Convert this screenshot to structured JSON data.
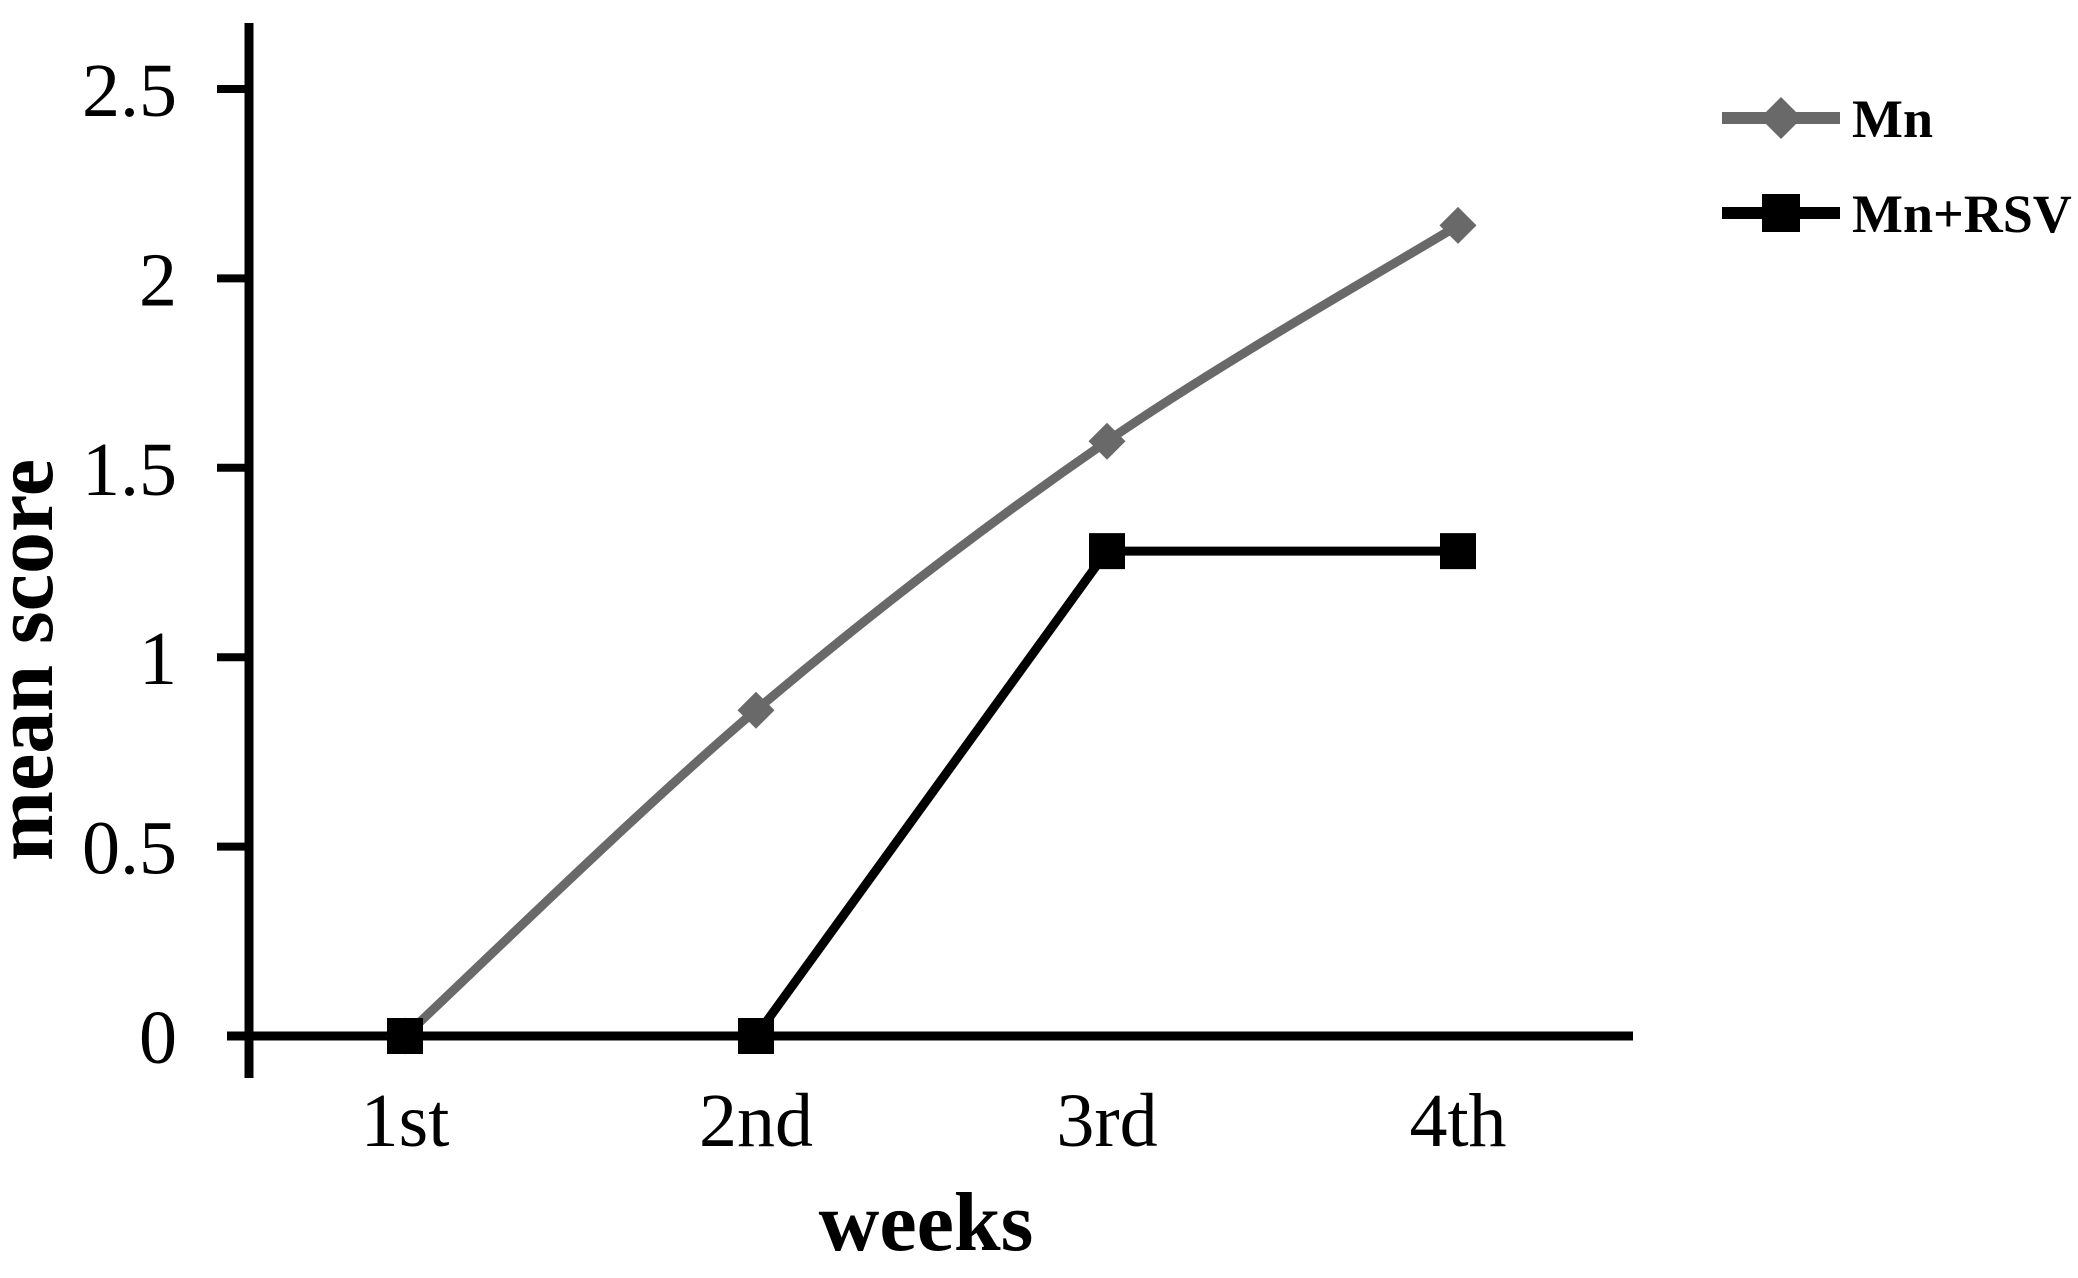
{
  "figure": {
    "background": "#ffffff",
    "text_color": "#000000"
  },
  "chart_data": {
    "type": "line",
    "xlabel": "weeks",
    "ylabel": "mean score",
    "categories": [
      "1st",
      "2nd",
      "3rd",
      "4th"
    ],
    "series": [
      {
        "name": "Mn",
        "values": [
          0,
          0.86,
          1.57,
          2.14
        ],
        "color": "#696969",
        "marker": "diamond",
        "smooth": true
      },
      {
        "name": "Mn+RSV",
        "values": [
          0,
          0,
          1.28,
          1.28
        ],
        "color": "#000000",
        "marker": "square",
        "smooth": false
      }
    ],
    "ylim": [
      0,
      2.5
    ],
    "yticks": [
      0,
      0.5,
      1,
      1.5,
      2,
      2.5
    ],
    "ytick_labels": [
      "0",
      "0.5",
      "1",
      "1.5",
      "2",
      "2.5"
    ],
    "grid": false,
    "legend_position": "top-right",
    "axis_color": "#000000"
  }
}
